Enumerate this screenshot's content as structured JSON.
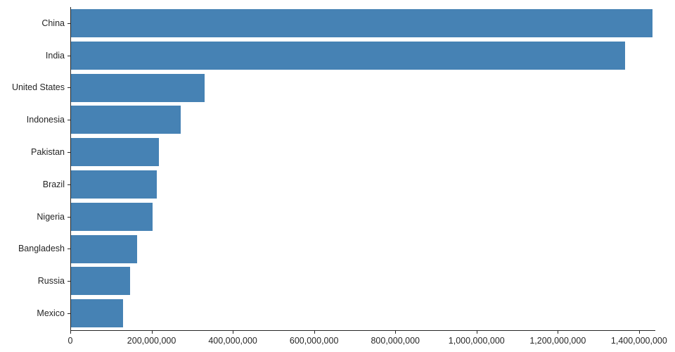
{
  "chart_data": {
    "type": "bar",
    "orientation": "horizontal",
    "title": "",
    "xlabel": "",
    "ylabel": "",
    "categories": [
      "China",
      "India",
      "United States",
      "Indonesia",
      "Pakistan",
      "Brazil",
      "Nigeria",
      "Bangladesh",
      "Russia",
      "Mexico"
    ],
    "values": [
      1433000000,
      1366000000,
      329000000,
      271000000,
      217000000,
      211000000,
      201000000,
      163000000,
      146000000,
      128000000
    ],
    "xlim": [
      0,
      1440000000
    ],
    "xticks": {
      "values": [
        0,
        200000000,
        400000000,
        600000000,
        800000000,
        1000000000,
        1200000000,
        1400000000
      ],
      "labels": [
        "0",
        "200,000,000",
        "400,000,000",
        "600,000,000",
        "800,000,000",
        "1,000,000,000",
        "1,200,000,000",
        "1,400,000,000"
      ]
    },
    "bar_color": "#4682b4",
    "axis_color": "#262626",
    "grid": false,
    "legend": null
  }
}
